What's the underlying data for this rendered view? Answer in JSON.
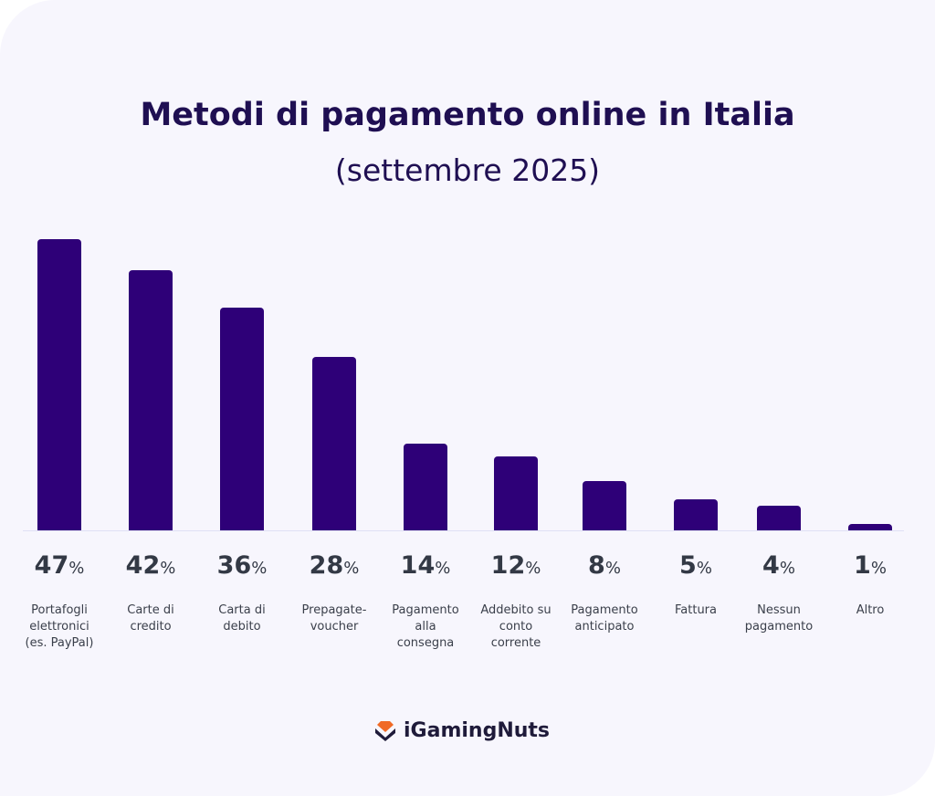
{
  "chart_data": {
    "type": "bar",
    "title": "Metodi di pagamento online in Italia",
    "subtitle": "(settembre 2025)",
    "categories": [
      "Portafogli\nelettronici\n(es. PayPal)",
      "Carte di\ncredito",
      "Carta di\ndebito",
      "Prepagate-\nvoucher",
      "Pagamento\nalla\nconsegna",
      "Addebito su\nconto\ncorrente",
      "Pagamento\nanticipato",
      "Fattura",
      "Nessun\npagamento",
      "Altro"
    ],
    "values": [
      47,
      42,
      36,
      28,
      14,
      12,
      8,
      5,
      4,
      1
    ],
    "unit": "%",
    "ylim": [
      0,
      47
    ],
    "grid": false,
    "bar_color": "#2e0078"
  },
  "brand": {
    "name": "iGamingNuts",
    "accent": "#f06a25"
  }
}
